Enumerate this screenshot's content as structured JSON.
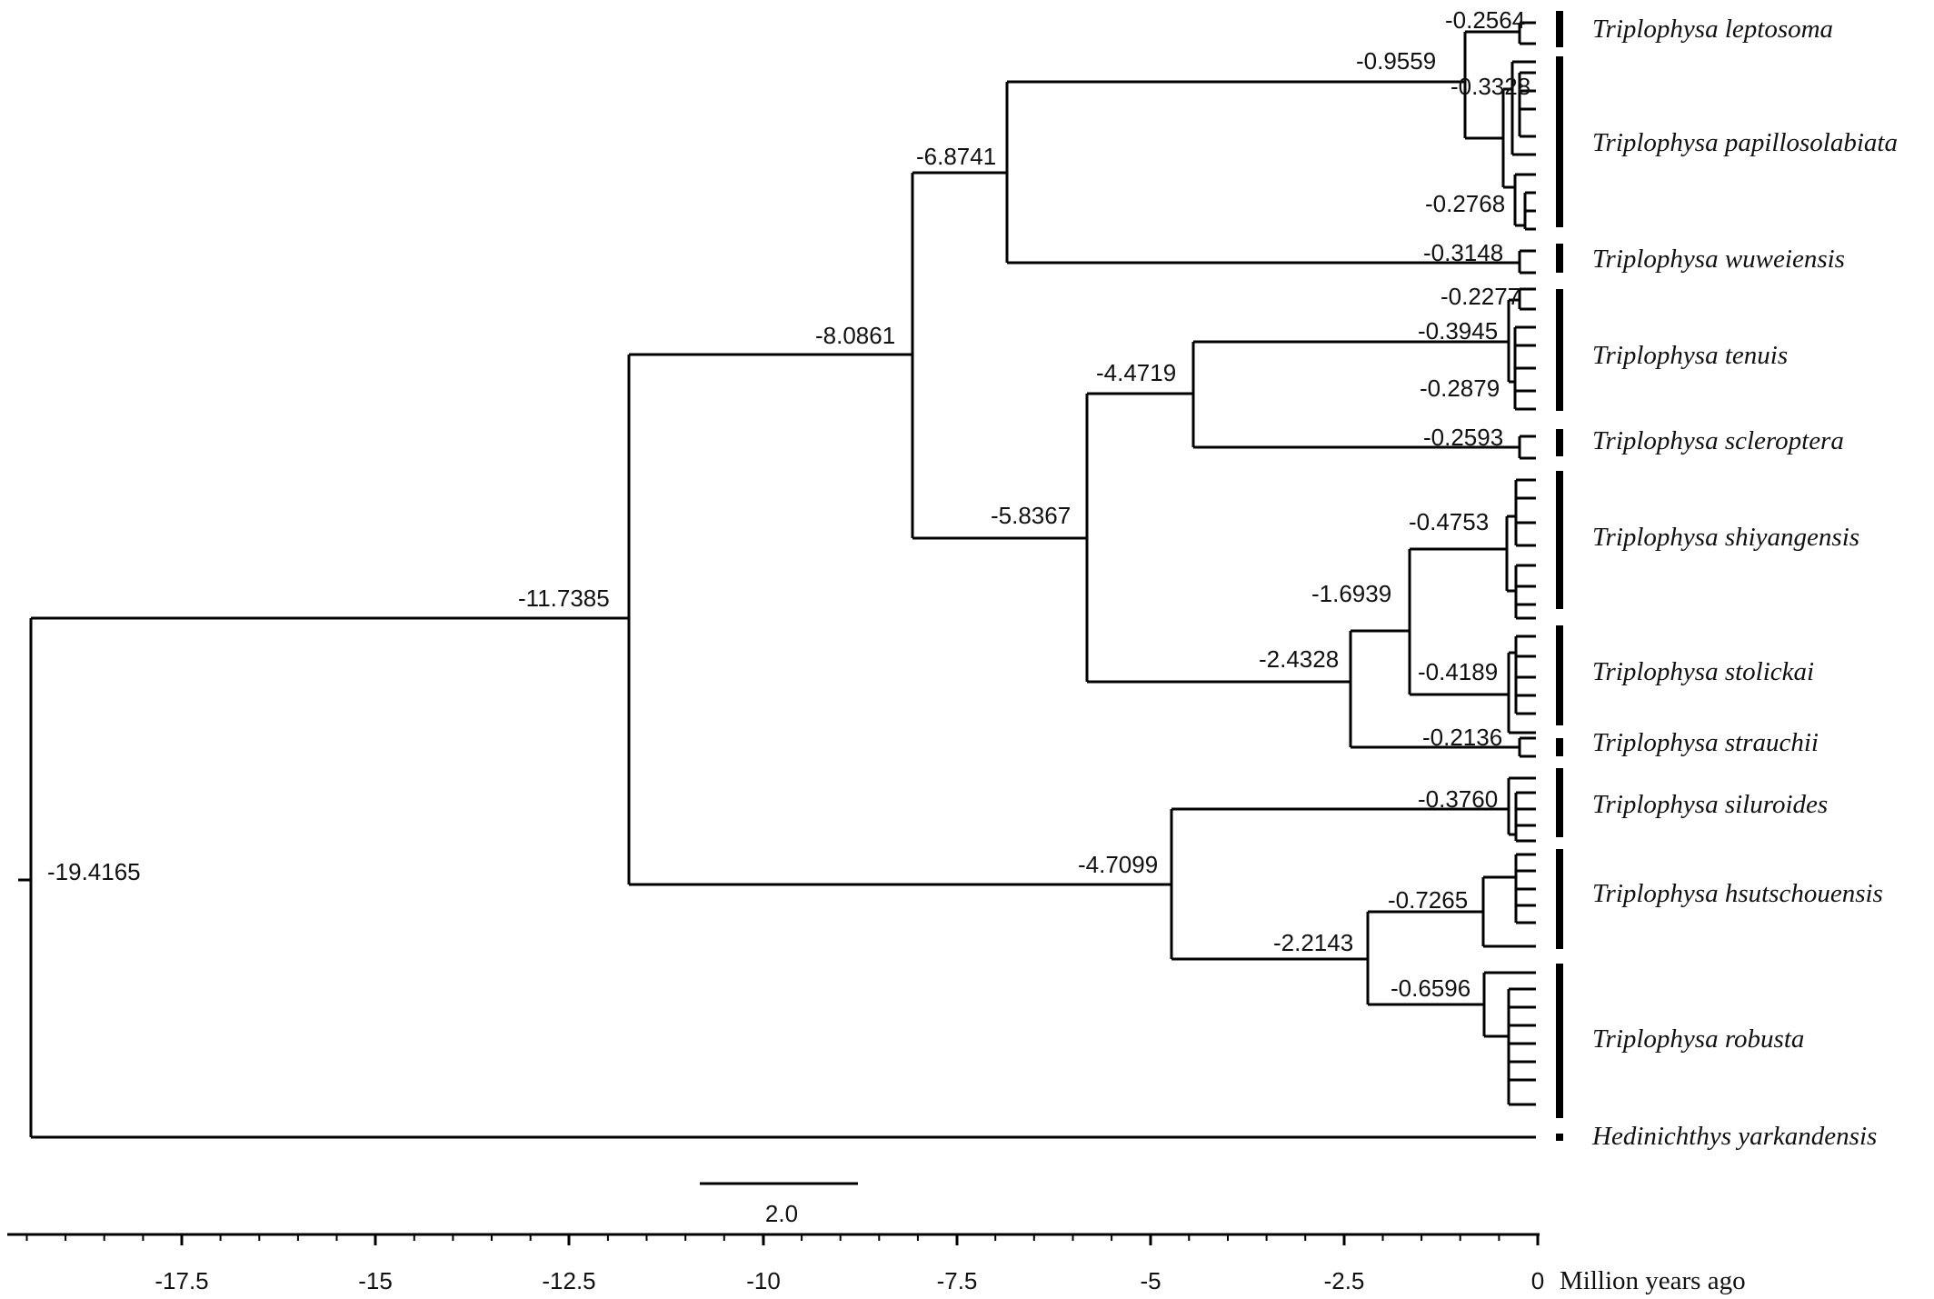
{
  "nodes": {
    "root": "-19.4165",
    "n1": "-11.7385",
    "n2": "-8.0861",
    "n3": "-6.8741",
    "n4": "-0.9559",
    "n5": "-0.2564",
    "n6": "-0.3328",
    "n7": "-0.2768",
    "n8": "-0.3148",
    "n9": "-5.8367",
    "n10": "-4.4719",
    "n11": "-0.2277",
    "n12": "-0.3945",
    "n13": "-0.2879",
    "n14": "-0.2593",
    "n15": "-2.4328",
    "n16": "-1.6939",
    "n17": "-0.4753",
    "n18": "-0.4189",
    "n19": "-0.2136",
    "n20": "-4.7099",
    "n21": "-0.3760",
    "n22": "-2.2143",
    "n23": "-0.7265",
    "n24": "-0.6596"
  },
  "species": {
    "leptosoma": "Triplophysa leptosoma",
    "papillosolabiata": "Triplophysa papillosolabiata",
    "wuweiensis": "Triplophysa wuweiensis",
    "tenuis": "Triplophysa tenuis",
    "scleroptera": "Triplophysa scleroptera",
    "shiyangensis": "Triplophysa shiyangensis",
    "stolickai": "Triplophysa stolickai",
    "strauchii": "Triplophysa strauchii",
    "siluroides": "Triplophysa siluroides",
    "hsutschouensis": "Triplophysa hsutschouensis",
    "robusta": "Triplophysa robusta",
    "yarkandensis": "Hedinichthys yarkandensis"
  },
  "scale_bar": "2.0",
  "axis": {
    "ticks": [
      "-17.5",
      "-15",
      "-12.5",
      "-10",
      "-7.5",
      "-5",
      "-2.5",
      "0"
    ],
    "unit": "Million  years ago"
  }
}
